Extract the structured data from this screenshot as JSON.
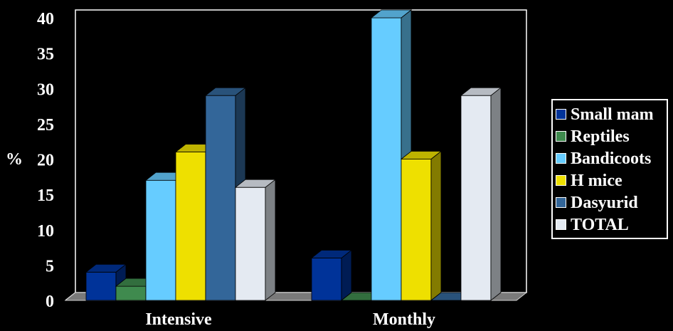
{
  "chart_data": {
    "type": "bar",
    "title": "",
    "xlabel": "",
    "ylabel": "%",
    "ylim": [
      0,
      40
    ],
    "yticks": [
      "0",
      "5",
      "10",
      "15",
      "20",
      "25",
      "30",
      "35",
      "40"
    ],
    "categories": [
      "Intensive",
      "Monthly"
    ],
    "series": [
      {
        "name": "Small mam",
        "values": [
          4,
          6
        ],
        "color": "#003399"
      },
      {
        "name": "Reptiles",
        "values": [
          2,
          0
        ],
        "color": "#3f8a4e"
      },
      {
        "name": "Bandicoots",
        "values": [
          17,
          40
        ],
        "color": "#66ccff"
      },
      {
        "name": "H mice",
        "values": [
          21,
          20
        ],
        "color": "#eee000"
      },
      {
        "name": "Dasyurid",
        "values": [
          29,
          0
        ],
        "color": "#336699"
      },
      {
        "name": "TOTAL",
        "values": [
          16,
          29
        ],
        "color": "#e4eaf2"
      }
    ],
    "grid": false,
    "legend_position": "right",
    "style": "3d-column"
  }
}
